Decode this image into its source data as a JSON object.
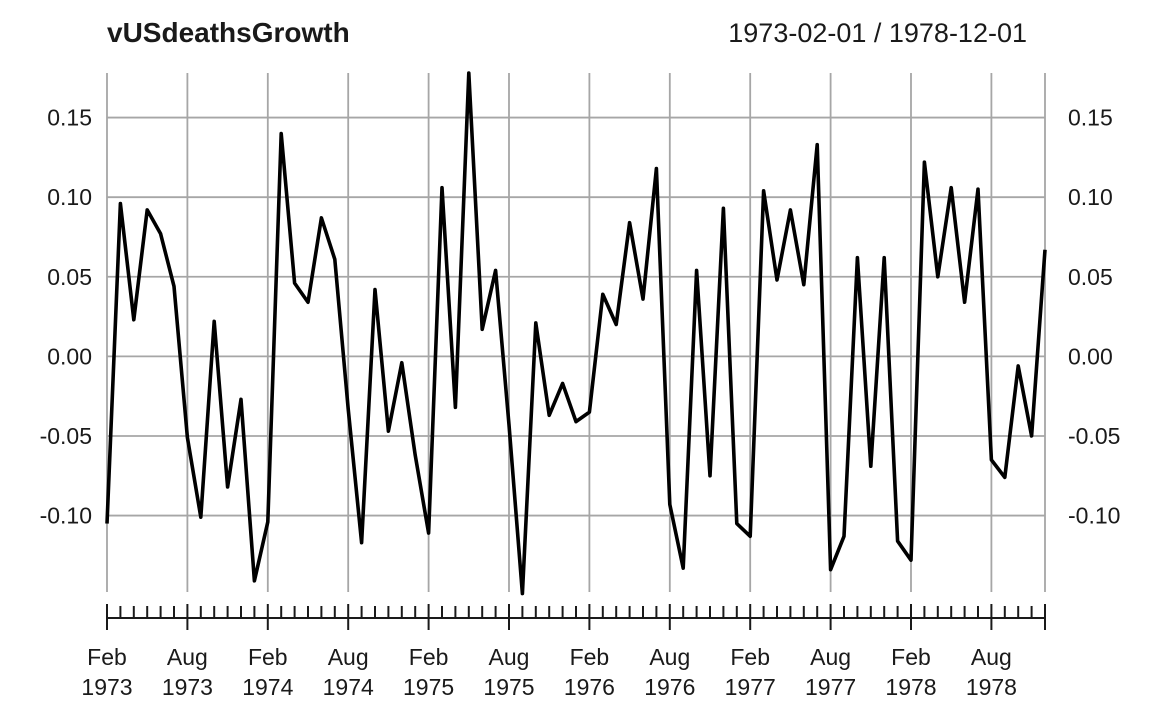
{
  "chart_data": {
    "type": "line",
    "title": "vUSdeathsGrowth",
    "date_range": "1973-02-01 / 1978-12-01",
    "grid": true,
    "series": [
      {
        "color": "#000000",
        "x": [
          "1973-02",
          "1973-03",
          "1973-04",
          "1973-05",
          "1973-06",
          "1973-07",
          "1973-08",
          "1973-09",
          "1973-10",
          "1973-11",
          "1973-12",
          "1974-01",
          "1974-02",
          "1974-03",
          "1974-04",
          "1974-05",
          "1974-06",
          "1974-07",
          "1974-08",
          "1974-09",
          "1974-10",
          "1974-11",
          "1974-12",
          "1975-01",
          "1975-02",
          "1975-03",
          "1975-04",
          "1975-05",
          "1975-06",
          "1975-07",
          "1975-08",
          "1975-09",
          "1975-10",
          "1975-11",
          "1975-12",
          "1976-01",
          "1976-02",
          "1976-03",
          "1976-04",
          "1976-05",
          "1976-06",
          "1976-07",
          "1976-08",
          "1976-09",
          "1976-10",
          "1976-11",
          "1976-12",
          "1977-01",
          "1977-02",
          "1977-03",
          "1977-04",
          "1977-05",
          "1977-06",
          "1977-07",
          "1977-08",
          "1977-09",
          "1977-10",
          "1977-11",
          "1977-12",
          "1978-01",
          "1978-02",
          "1978-03",
          "1978-04",
          "1978-05",
          "1978-06",
          "1978-07",
          "1978-08",
          "1978-09",
          "1978-10",
          "1978-11",
          "1978-12"
        ],
        "values": [
          -0.105,
          0.096,
          0.023,
          0.092,
          0.077,
          0.044,
          -0.051,
          -0.101,
          0.022,
          -0.082,
          -0.027,
          -0.141,
          -0.104,
          0.14,
          0.046,
          0.034,
          0.087,
          0.061,
          -0.033,
          -0.117,
          0.042,
          -0.047,
          -0.004,
          -0.062,
          -0.111,
          0.106,
          -0.032,
          0.178,
          0.017,
          0.054,
          -0.043,
          -0.149,
          0.021,
          -0.037,
          -0.017,
          -0.041,
          -0.035,
          0.039,
          0.02,
          0.084,
          0.036,
          0.118,
          -0.093,
          -0.133,
          0.054,
          -0.075,
          0.093,
          -0.105,
          -0.113,
          0.104,
          0.048,
          0.092,
          0.045,
          0.133,
          -0.134,
          -0.113,
          0.062,
          -0.069,
          0.062,
          -0.116,
          -0.128,
          0.122,
          0.05,
          0.106,
          0.034,
          0.105,
          -0.065,
          -0.076,
          -0.006,
          -0.05,
          0.067
        ]
      }
    ],
    "ylim": [
      -0.148,
      0.178
    ],
    "y_ticks": [
      {
        "value": 0.15,
        "label": "0.15"
      },
      {
        "value": 0.1,
        "label": "0.10"
      },
      {
        "value": 0.05,
        "label": "0.05"
      },
      {
        "value": 0.0,
        "label": "0.00"
      },
      {
        "value": -0.05,
        "label": "-0.05"
      },
      {
        "value": -0.1,
        "label": "-0.10"
      }
    ],
    "x_labels": [
      {
        "date": "1973-02",
        "month": "Feb",
        "year": "1973"
      },
      {
        "date": "1973-08",
        "month": "Aug",
        "year": "1973"
      },
      {
        "date": "1974-02",
        "month": "Feb",
        "year": "1974"
      },
      {
        "date": "1974-08",
        "month": "Aug",
        "year": "1974"
      },
      {
        "date": "1975-02",
        "month": "Feb",
        "year": "1975"
      },
      {
        "date": "1975-08",
        "month": "Aug",
        "year": "1975"
      },
      {
        "date": "1976-02",
        "month": "Feb",
        "year": "1976"
      },
      {
        "date": "1976-08",
        "month": "Aug",
        "year": "1976"
      },
      {
        "date": "1977-02",
        "month": "Feb",
        "year": "1977"
      },
      {
        "date": "1977-08",
        "month": "Aug",
        "year": "1977"
      },
      {
        "date": "1978-02",
        "month": "Feb",
        "year": "1978"
      },
      {
        "date": "1978-08",
        "month": "Aug",
        "year": "1978"
      }
    ]
  }
}
